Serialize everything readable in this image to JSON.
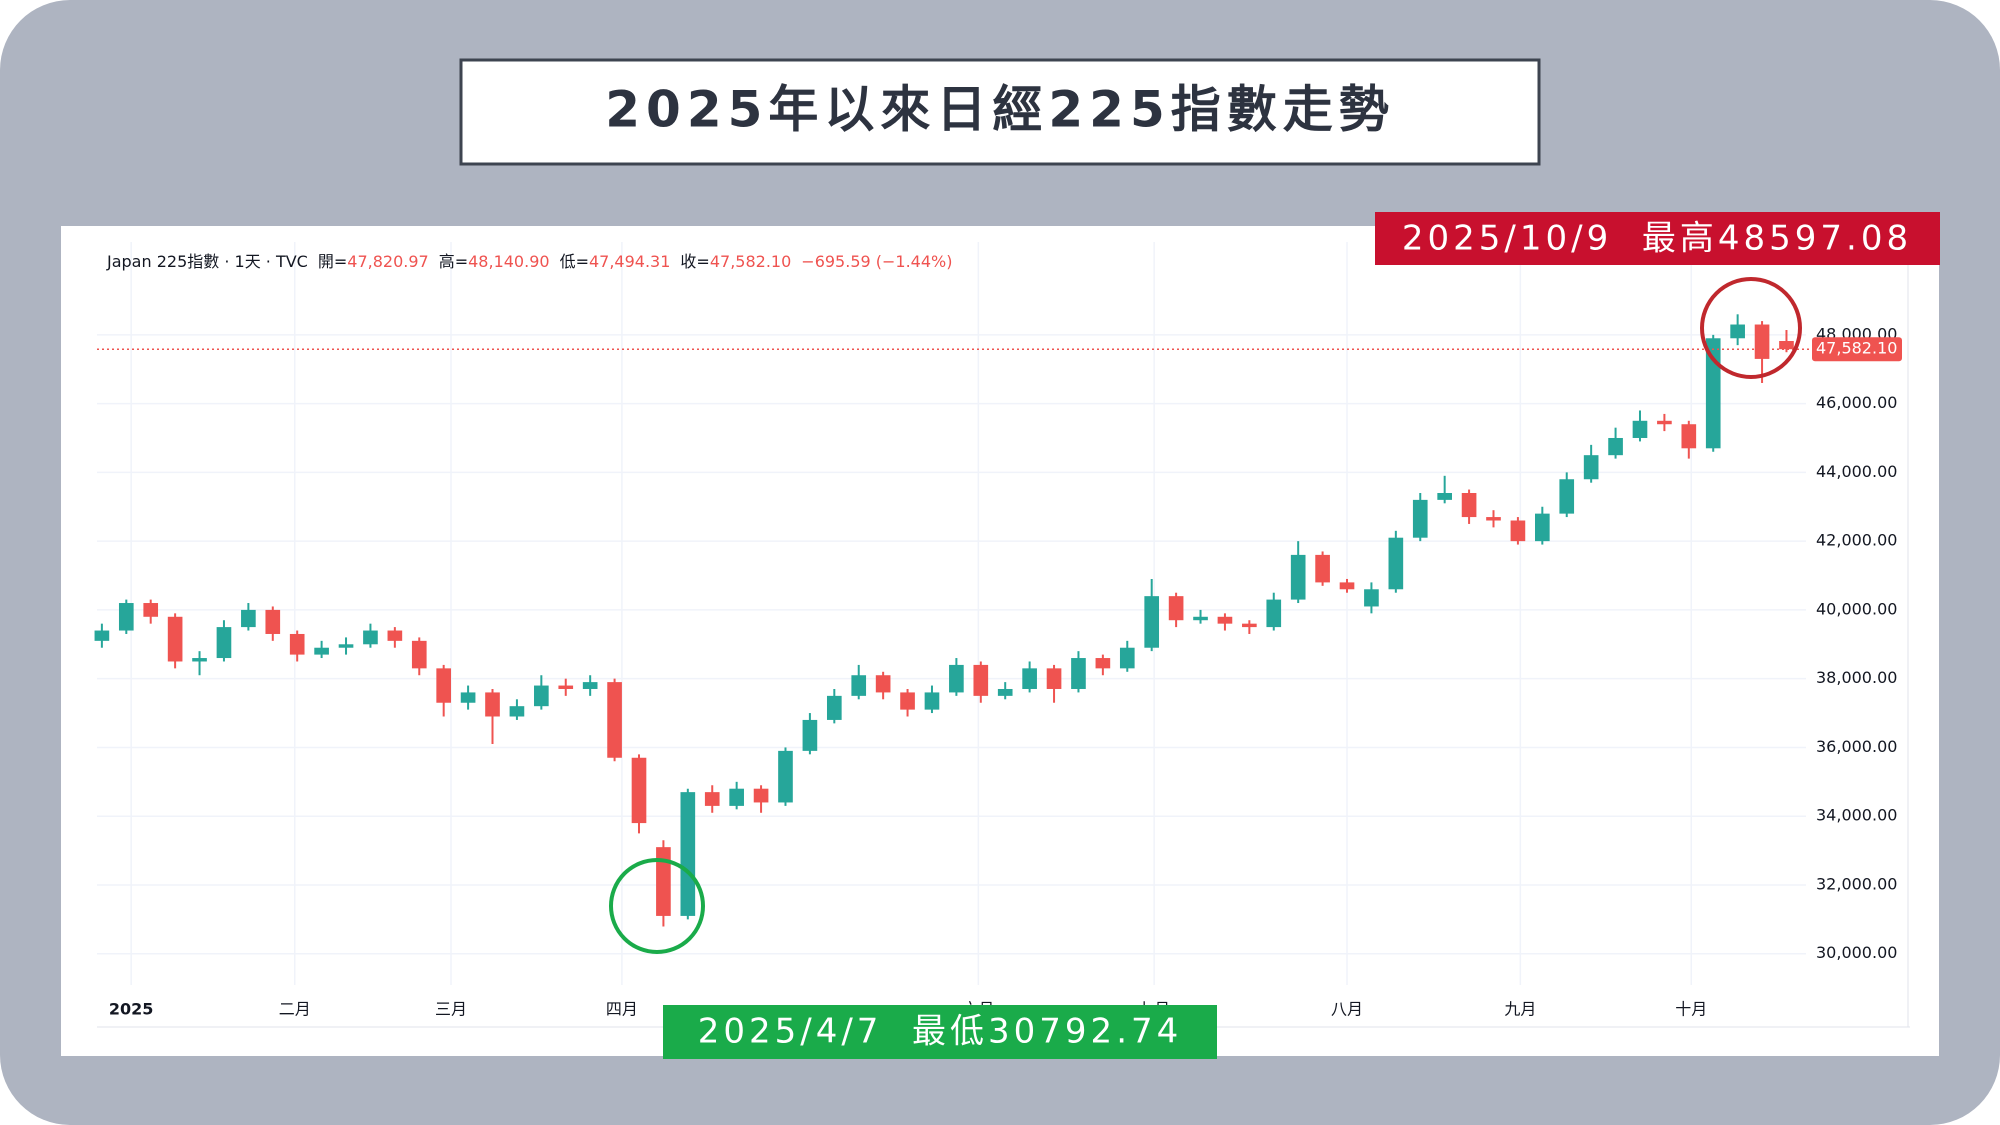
{
  "header": {
    "title": "2025年以來日經225指數走勢"
  },
  "chart_data": {
    "type": "candlestick",
    "legend": {
      "symbol": "Japan 225指數 · 1天 · TVC",
      "items": [
        {
          "label": "開=",
          "value": "47,820.97"
        },
        {
          "label": "高=",
          "value": "48,140.90"
        },
        {
          "label": "低=",
          "value": "47,494.31"
        },
        {
          "label": "收=",
          "value": "47,582.10"
        }
      ],
      "change": "−695.59 (−1.44%)"
    },
    "annotations": {
      "high": "2025/10/9  最高48597.08",
      "low": "2025/4/7  最低30792.74"
    },
    "last_price": {
      "value": 47582.1,
      "label": "47,582.10"
    },
    "up_color": "#26a69a",
    "down_color": "#ef5350",
    "grid": true,
    "open": [
      39100,
      39400,
      40200,
      39800,
      38500,
      38600,
      39500,
      40000,
      39300,
      38700,
      38900,
      39000,
      39400,
      39100,
      38300,
      37300,
      37600,
      36900,
      37200,
      37800,
      37700,
      37900,
      35700,
      33100,
      31100,
      34700,
      34300,
      34800,
      34400,
      35900,
      36800,
      37500,
      38100,
      37600,
      37100,
      37600,
      38400,
      37500,
      37700,
      38300,
      37700,
      38600,
      38300,
      38900,
      40400,
      39700,
      39800,
      39600,
      39500,
      40300,
      41600,
      40800,
      40100,
      40600,
      42100,
      43200,
      43400,
      42700,
      42600,
      42000,
      42800,
      43800,
      44500,
      45000,
      45500,
      45400,
      44700,
      47900,
      48300,
      47820.97
    ],
    "high": [
      39600,
      40300,
      40300,
      39900,
      38800,
      39700,
      40200,
      40100,
      39400,
      39100,
      39200,
      39600,
      39500,
      39200,
      38400,
      37800,
      37700,
      37400,
      38100,
      38000,
      38100,
      38000,
      35800,
      33300,
      34800,
      34900,
      35000,
      34900,
      36000,
      37000,
      37700,
      38400,
      38200,
      37700,
      37800,
      38600,
      38500,
      37900,
      38500,
      38400,
      38800,
      38700,
      39100,
      40900,
      40500,
      40000,
      39900,
      39700,
      40500,
      42000,
      41700,
      40900,
      40800,
      42300,
      43400,
      43900,
      43500,
      42900,
      42700,
      43000,
      44000,
      44800,
      45300,
      45800,
      45700,
      45500,
      48000,
      48597.08,
      48400,
      48140.9
    ],
    "low": [
      38900,
      39300,
      39600,
      38300,
      38100,
      38500,
      39400,
      39100,
      38500,
      38600,
      38700,
      38900,
      38900,
      38100,
      36900,
      37100,
      36100,
      36800,
      37100,
      37500,
      37500,
      35600,
      33500,
      30792.74,
      31000,
      34100,
      34200,
      34100,
      34300,
      35800,
      36700,
      37400,
      37400,
      36900,
      37000,
      37500,
      37300,
      37400,
      37600,
      37300,
      37600,
      38100,
      38200,
      38800,
      39500,
      39600,
      39400,
      39300,
      39400,
      40200,
      40700,
      40500,
      39900,
      40500,
      42000,
      43100,
      42500,
      42400,
      41900,
      41900,
      42700,
      43700,
      44400,
      44900,
      45200,
      44400,
      44600,
      47700,
      46600,
      47494.31
    ],
    "close": [
      39400,
      40200,
      39800,
      38500,
      38600,
      39500,
      40000,
      39300,
      38700,
      38900,
      39000,
      39400,
      39100,
      38300,
      37300,
      37600,
      36900,
      37200,
      37800,
      37700,
      37900,
      35700,
      33800,
      31100,
      34700,
      34300,
      34800,
      34400,
      35900,
      36800,
      37500,
      38100,
      37600,
      37100,
      37600,
      38400,
      37500,
      37700,
      38300,
      37700,
      38600,
      38300,
      38900,
      40400,
      39700,
      39800,
      39600,
      39500,
      40300,
      41600,
      40800,
      40600,
      40600,
      42100,
      43200,
      43400,
      42700,
      42600,
      42000,
      42800,
      43800,
      44500,
      45000,
      45500,
      45400,
      44700,
      47900,
      48300,
      47300,
      47582.1
    ],
    "xlim": [
      -0.2,
      69.8
    ],
    "xticks": [
      {
        "value": 1.2,
        "label": "2025"
      },
      {
        "value": 7.9,
        "label": "二月"
      },
      {
        "value": 14.3,
        "label": "三月"
      },
      {
        "value": 21.3,
        "label": "四月"
      },
      {
        "value": 35.9,
        "label": "六月"
      },
      {
        "value": 43.1,
        "label": "七月"
      },
      {
        "value": 51.0,
        "label": "八月"
      },
      {
        "value": 58.1,
        "label": "九月"
      },
      {
        "value": 65.1,
        "label": "十月"
      }
    ],
    "ylim": [
      28800,
      50700
    ],
    "yticks": [
      {
        "value": 30000,
        "label": "30,000.00"
      },
      {
        "value": 32000,
        "label": "32,000.00"
      },
      {
        "value": 34000,
        "label": "34,000.00"
      },
      {
        "value": 36000,
        "label": "36,000.00"
      },
      {
        "value": 38000,
        "label": "38,000.00"
      },
      {
        "value": 40000,
        "label": "40,000.00"
      },
      {
        "value": 42000,
        "label": "42,000.00"
      },
      {
        "value": 44000,
        "label": "44,000.00"
      },
      {
        "value": 46000,
        "label": "46,000.00"
      },
      {
        "value": 48000,
        "label": "48,000.00"
      }
    ]
  }
}
